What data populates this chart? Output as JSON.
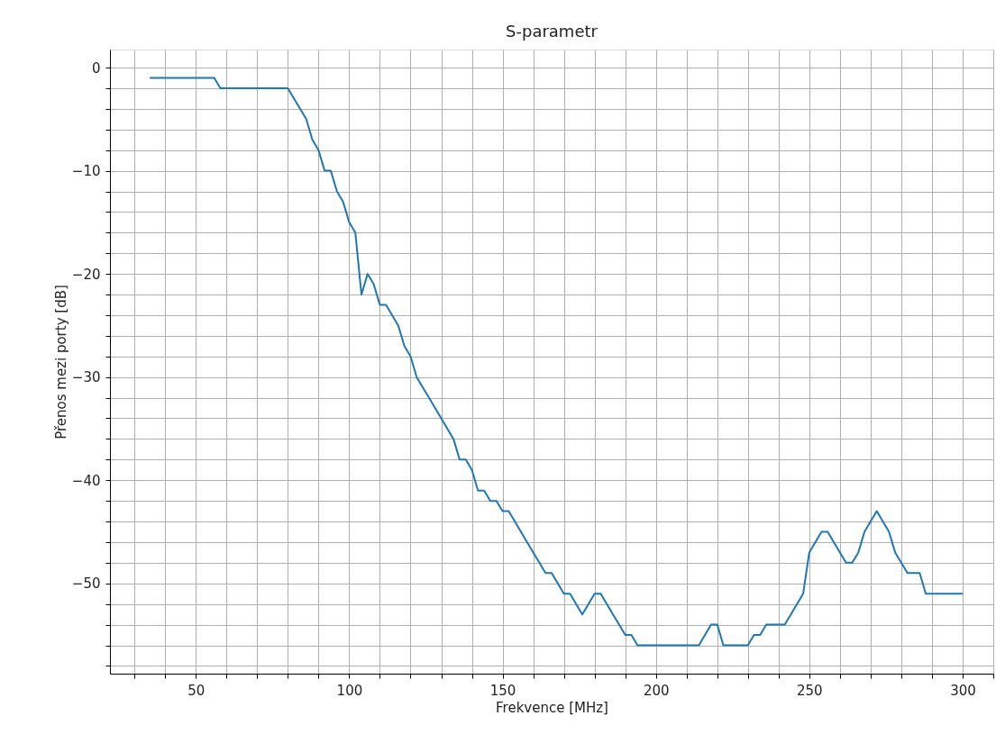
{
  "chart_data": {
    "type": "line",
    "title": "S-parametr",
    "xlabel": "Frekvence [MHz]",
    "ylabel": "Přenos mezi porty [dB]",
    "x": [
      35,
      56,
      58,
      80,
      82,
      84,
      86,
      88,
      90,
      92,
      94,
      96,
      98,
      100,
      102,
      104,
      106,
      108,
      110,
      112,
      114,
      116,
      118,
      120,
      122,
      124,
      126,
      128,
      130,
      132,
      134,
      136,
      138,
      140,
      142,
      144,
      146,
      148,
      150,
      152,
      154,
      156,
      158,
      160,
      162,
      164,
      166,
      168,
      170,
      172,
      174,
      176,
      178,
      180,
      182,
      184,
      186,
      188,
      190,
      192,
      194,
      214,
      216,
      218,
      220,
      222,
      230,
      232,
      234,
      236,
      242,
      244,
      246,
      248,
      250,
      252,
      254,
      256,
      258,
      260,
      262,
      264,
      266,
      268,
      270,
      272,
      274,
      276,
      278,
      280,
      282,
      284,
      286,
      288,
      300
    ],
    "series": [
      {
        "color": "#1f77b4",
        "values": [
          -1,
          -1,
          -2,
          -2,
          -3,
          -4,
          -5,
          -7,
          -8,
          -10,
          -10,
          -12,
          -13,
          -15,
          -16,
          -22,
          -20,
          -21,
          -23,
          -23,
          -24,
          -25,
          -27,
          -28,
          -30,
          -31,
          -32,
          -33,
          -34,
          -35,
          -36,
          -38,
          -38,
          -39,
          -41,
          -41,
          -42,
          -42,
          -43,
          -43,
          -44,
          -45,
          -46,
          -47,
          -48,
          -49,
          -49,
          -50,
          -51,
          -51,
          -52,
          -53,
          -52,
          -51,
          -51,
          -52,
          -53,
          -54,
          -55,
          -55,
          -56,
          -56,
          -55,
          -54,
          -54,
          -56,
          -56,
          -55,
          -55,
          -54,
          -54,
          -53,
          -52,
          -51,
          -47,
          -46,
          -45,
          -45,
          -46,
          -47,
          -48,
          -48,
          -47,
          -45,
          -44,
          -43,
          -44,
          -45,
          -47,
          -48,
          -49,
          -49,
          -49,
          -51,
          -51
        ]
      }
    ],
    "xlim": [
      22,
      310
    ],
    "ylim": [
      -58.75,
      1.75
    ],
    "xticks": [
      {
        "value": 30,
        "label": null
      },
      {
        "value": 40,
        "label": null
      },
      50,
      {
        "value": 60,
        "label": null
      },
      {
        "value": 70,
        "label": null
      },
      {
        "value": 80,
        "label": null
      },
      {
        "value": 90,
        "label": null
      },
      100,
      {
        "value": 110,
        "label": null
      },
      {
        "value": 120,
        "label": null
      },
      {
        "value": 130,
        "label": null
      },
      {
        "value": 140,
        "label": null
      },
      150,
      {
        "value": 160,
        "label": null
      },
      {
        "value": 170,
        "label": null
      },
      {
        "value": 180,
        "label": null
      },
      {
        "value": 190,
        "label": null
      },
      200,
      {
        "value": 210,
        "label": null
      },
      {
        "value": 220,
        "label": null
      },
      {
        "value": 230,
        "label": null
      },
      {
        "value": 240,
        "label": null
      },
      250,
      {
        "value": 260,
        "label": null
      },
      {
        "value": 270,
        "label": null
      },
      {
        "value": 280,
        "label": null
      },
      {
        "value": 290,
        "label": null
      },
      300,
      {
        "value": 310,
        "label": null
      }
    ],
    "yticks": [
      0,
      {
        "value": -2,
        "label": null
      },
      {
        "value": -4,
        "label": null
      },
      {
        "value": -6,
        "label": null
      },
      {
        "value": -8,
        "label": null
      },
      {
        "value": -10,
        "label": "−10"
      },
      {
        "value": -12,
        "label": null
      },
      {
        "value": -14,
        "label": null
      },
      {
        "value": -16,
        "label": null
      },
      {
        "value": -18,
        "label": null
      },
      {
        "value": -20,
        "label": "−20"
      },
      {
        "value": -22,
        "label": null
      },
      {
        "value": -24,
        "label": null
      },
      {
        "value": -26,
        "label": null
      },
      {
        "value": -28,
        "label": null
      },
      {
        "value": -30,
        "label": "−30"
      },
      {
        "value": -32,
        "label": null
      },
      {
        "value": -34,
        "label": null
      },
      {
        "value": -36,
        "label": null
      },
      {
        "value": -38,
        "label": null
      },
      {
        "value": -40,
        "label": "−40"
      },
      {
        "value": -42,
        "label": null
      },
      {
        "value": -44,
        "label": null
      },
      {
        "value": -46,
        "label": null
      },
      {
        "value": -48,
        "label": null
      },
      {
        "value": -50,
        "label": "−50"
      },
      {
        "value": -52,
        "label": null
      },
      {
        "value": -54,
        "label": null
      },
      {
        "value": -56,
        "label": null
      },
      {
        "value": -58,
        "label": null
      }
    ],
    "grid": true,
    "line_style": "solid"
  }
}
